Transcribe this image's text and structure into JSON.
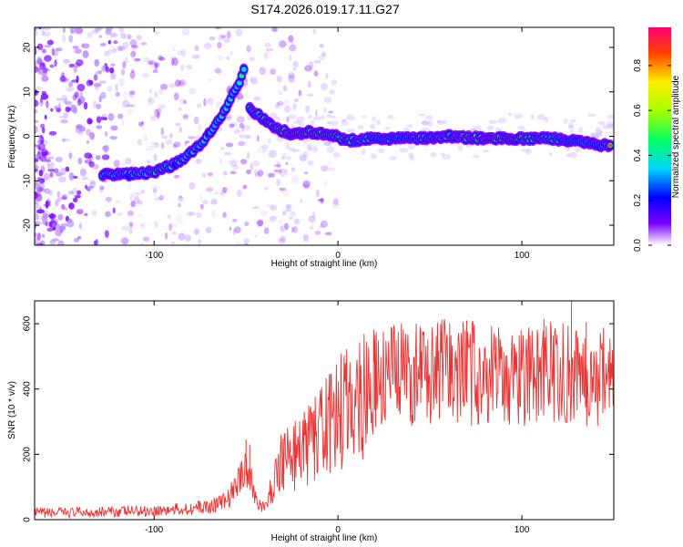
{
  "figure_title": "S174.2026.019.17.11.G27",
  "chart_data": [
    {
      "type": "heatmap",
      "title": "S174.2026.019.17.11.G27",
      "xlabel": "Height of straight line (km)",
      "ylabel": "Frequency (Hz)",
      "xlim": [
        -165,
        150
      ],
      "ylim": [
        -24.5,
        24.5
      ],
      "xticks": [
        -100,
        0,
        100
      ],
      "yticks": [
        -20,
        -10,
        0,
        10,
        20
      ],
      "colorbar": {
        "label": "Normalized spectral amplitude",
        "range": [
          0,
          0.97
        ],
        "ticks": [
          0.0,
          0.2,
          0.4,
          0.6,
          0.8
        ]
      },
      "ridge": {
        "description": "dominant frequency track",
        "x": [
          -128,
          -120,
          -110,
          -100,
          -90,
          -82,
          -75,
          -70,
          -65,
          -60,
          -55,
          -51
        ],
        "y": [
          -8.5,
          -8.5,
          -8.5,
          -8,
          -6.5,
          -4.5,
          -2,
          0.5,
          3.5,
          7,
          11,
          15
        ]
      },
      "ridge2": {
        "x": [
          -48,
          -42,
          -35,
          -25,
          -15,
          -5,
          5,
          20,
          40,
          60,
          80,
          100,
          115,
          130,
          140,
          148
        ],
        "y": [
          6,
          4.5,
          2,
          0.5,
          1,
          0.5,
          -1,
          -0.5,
          -0.5,
          0,
          -0.5,
          -0.5,
          -0.5,
          -1,
          -2,
          -2
        ]
      }
    },
    {
      "type": "line",
      "xlabel": "Height of straight line (km)",
      "ylabel": "SNR (10 * v/v)",
      "xlim": [
        -165,
        150
      ],
      "ylim": [
        0,
        670
      ],
      "xticks": [
        -100,
        0,
        100
      ],
      "yticks": [
        0,
        200,
        400,
        600
      ],
      "color": "#ee3333",
      "series": [
        {
          "name": "SNR",
          "trend_x": [
            -165,
            -120,
            -90,
            -70,
            -60,
            -55,
            -50,
            -45,
            -40,
            -35,
            -30,
            -25,
            -20,
            -10,
            0,
            10,
            20,
            30,
            50,
            70,
            90,
            110,
            130,
            150
          ],
          "trend_y": [
            20,
            25,
            30,
            40,
            60,
            110,
            170,
            70,
            30,
            110,
            200,
            190,
            210,
            260,
            320,
            380,
            420,
            440,
            450,
            450,
            440,
            440,
            450,
            430
          ],
          "peaks_x": [
            -50,
            -48,
            20,
            45,
            68,
            70,
            112,
            127,
            135
          ],
          "peaks_y": [
            245,
            230,
            540,
            585,
            605,
            610,
            615,
            670,
            605
          ]
        }
      ]
    }
  ]
}
